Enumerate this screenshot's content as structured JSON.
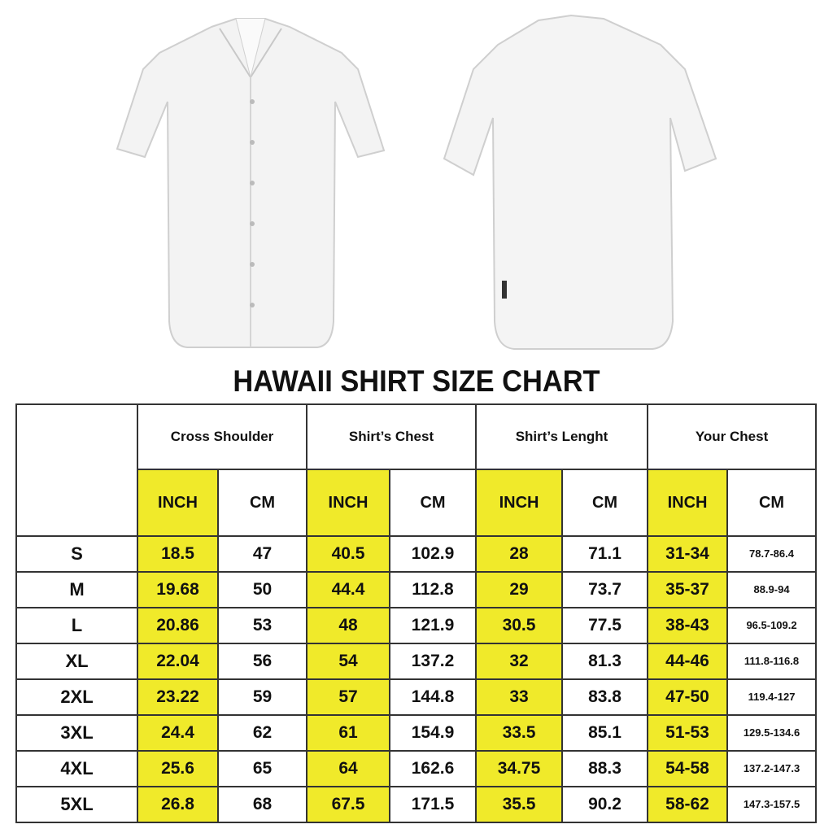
{
  "title": "HAWAII SHIRT SIZE CHART",
  "colors": {
    "highlight": "#f0ea2a",
    "border": "#333333"
  },
  "images": [
    "shirt-front",
    "shirt-back"
  ],
  "groups": [
    "Cross Shoulder",
    "Shirt’s Chest",
    "Shirt’s Lenght",
    "Your Chest"
  ],
  "units": [
    "INCH",
    "CM"
  ],
  "rows": [
    {
      "size": "S",
      "values": [
        "18.5",
        "47",
        "40.5",
        "102.9",
        "28",
        "71.1",
        "31-34",
        "78.7-86.4"
      ]
    },
    {
      "size": "M",
      "values": [
        "19.68",
        "50",
        "44.4",
        "112.8",
        "29",
        "73.7",
        "35-37",
        "88.9-94"
      ]
    },
    {
      "size": "L",
      "values": [
        "20.86",
        "53",
        "48",
        "121.9",
        "30.5",
        "77.5",
        "38-43",
        "96.5-109.2"
      ]
    },
    {
      "size": "XL",
      "values": [
        "22.04",
        "56",
        "54",
        "137.2",
        "32",
        "81.3",
        "44-46",
        "111.8-116.8"
      ]
    },
    {
      "size": "2XL",
      "values": [
        "23.22",
        "59",
        "57",
        "144.8",
        "33",
        "83.8",
        "47-50",
        "119.4-127"
      ]
    },
    {
      "size": "3XL",
      "values": [
        "24.4",
        "62",
        "61",
        "154.9",
        "33.5",
        "85.1",
        "51-53",
        "129.5-134.6"
      ]
    },
    {
      "size": "4XL",
      "values": [
        "25.6",
        "65",
        "64",
        "162.6",
        "34.75",
        "88.3",
        "54-58",
        "137.2-147.3"
      ]
    },
    {
      "size": "5XL",
      "values": [
        "26.8",
        "68",
        "67.5",
        "171.5",
        "35.5",
        "90.2",
        "58-62",
        "147.3-157.5"
      ]
    }
  ]
}
